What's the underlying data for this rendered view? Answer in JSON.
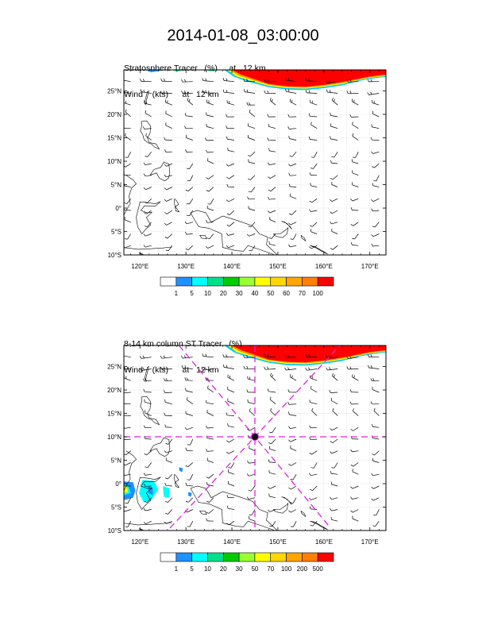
{
  "title": "2014-01-08_03:00:00",
  "panels": [
    {
      "label_line1": "Stratosphere Tracer   (%)     at   12 km",
      "label_line2": "Wind    (kts)      at   12 km",
      "colorbar_labels": [
        "1",
        "5",
        "10",
        "20",
        "30",
        "40",
        "50",
        "60",
        "70",
        "100"
      ],
      "colorbar_colors": [
        "#ffffff",
        "#1e90ff",
        "#00ffff",
        "#00e08a",
        "#00cc00",
        "#99ff33",
        "#ffff00",
        "#ffd700",
        "#ffa500",
        "#ff7f00",
        "#ff0000"
      ]
    },
    {
      "label_line1": "8-14 km column ST Tracer   (%)",
      "label_line2": "Wind    (kts)      at   12 km",
      "colorbar_labels": [
        "1",
        "5",
        "10",
        "20",
        "30",
        "50",
        "70",
        "100",
        "200",
        "500"
      ],
      "colorbar_colors": [
        "#ffffff",
        "#1e90ff",
        "#00ffff",
        "#00e08a",
        "#00cc00",
        "#99ff33",
        "#ffff00",
        "#ffd700",
        "#ffa500",
        "#ff7f00",
        "#ff0000"
      ]
    }
  ],
  "lat_labels": [
    "25°N",
    "20°N",
    "15°N",
    "10°N",
    "5°N",
    "0°",
    "5°S",
    "10°S"
  ],
  "lon_labels": [
    "120°E",
    "130°E",
    "140°E",
    "150°E",
    "160°E",
    "170°E"
  ],
  "map_extent": {
    "lon_min": 116.5,
    "lon_max": 173.5,
    "lat_min": -10,
    "lat_max": 29.5
  },
  "cross_section_center": {
    "lon": 145,
    "lat": 10
  },
  "colors": {
    "tracer_high": "#ff0000",
    "cross_lines": "#e020e0",
    "coast": "#000000"
  }
}
